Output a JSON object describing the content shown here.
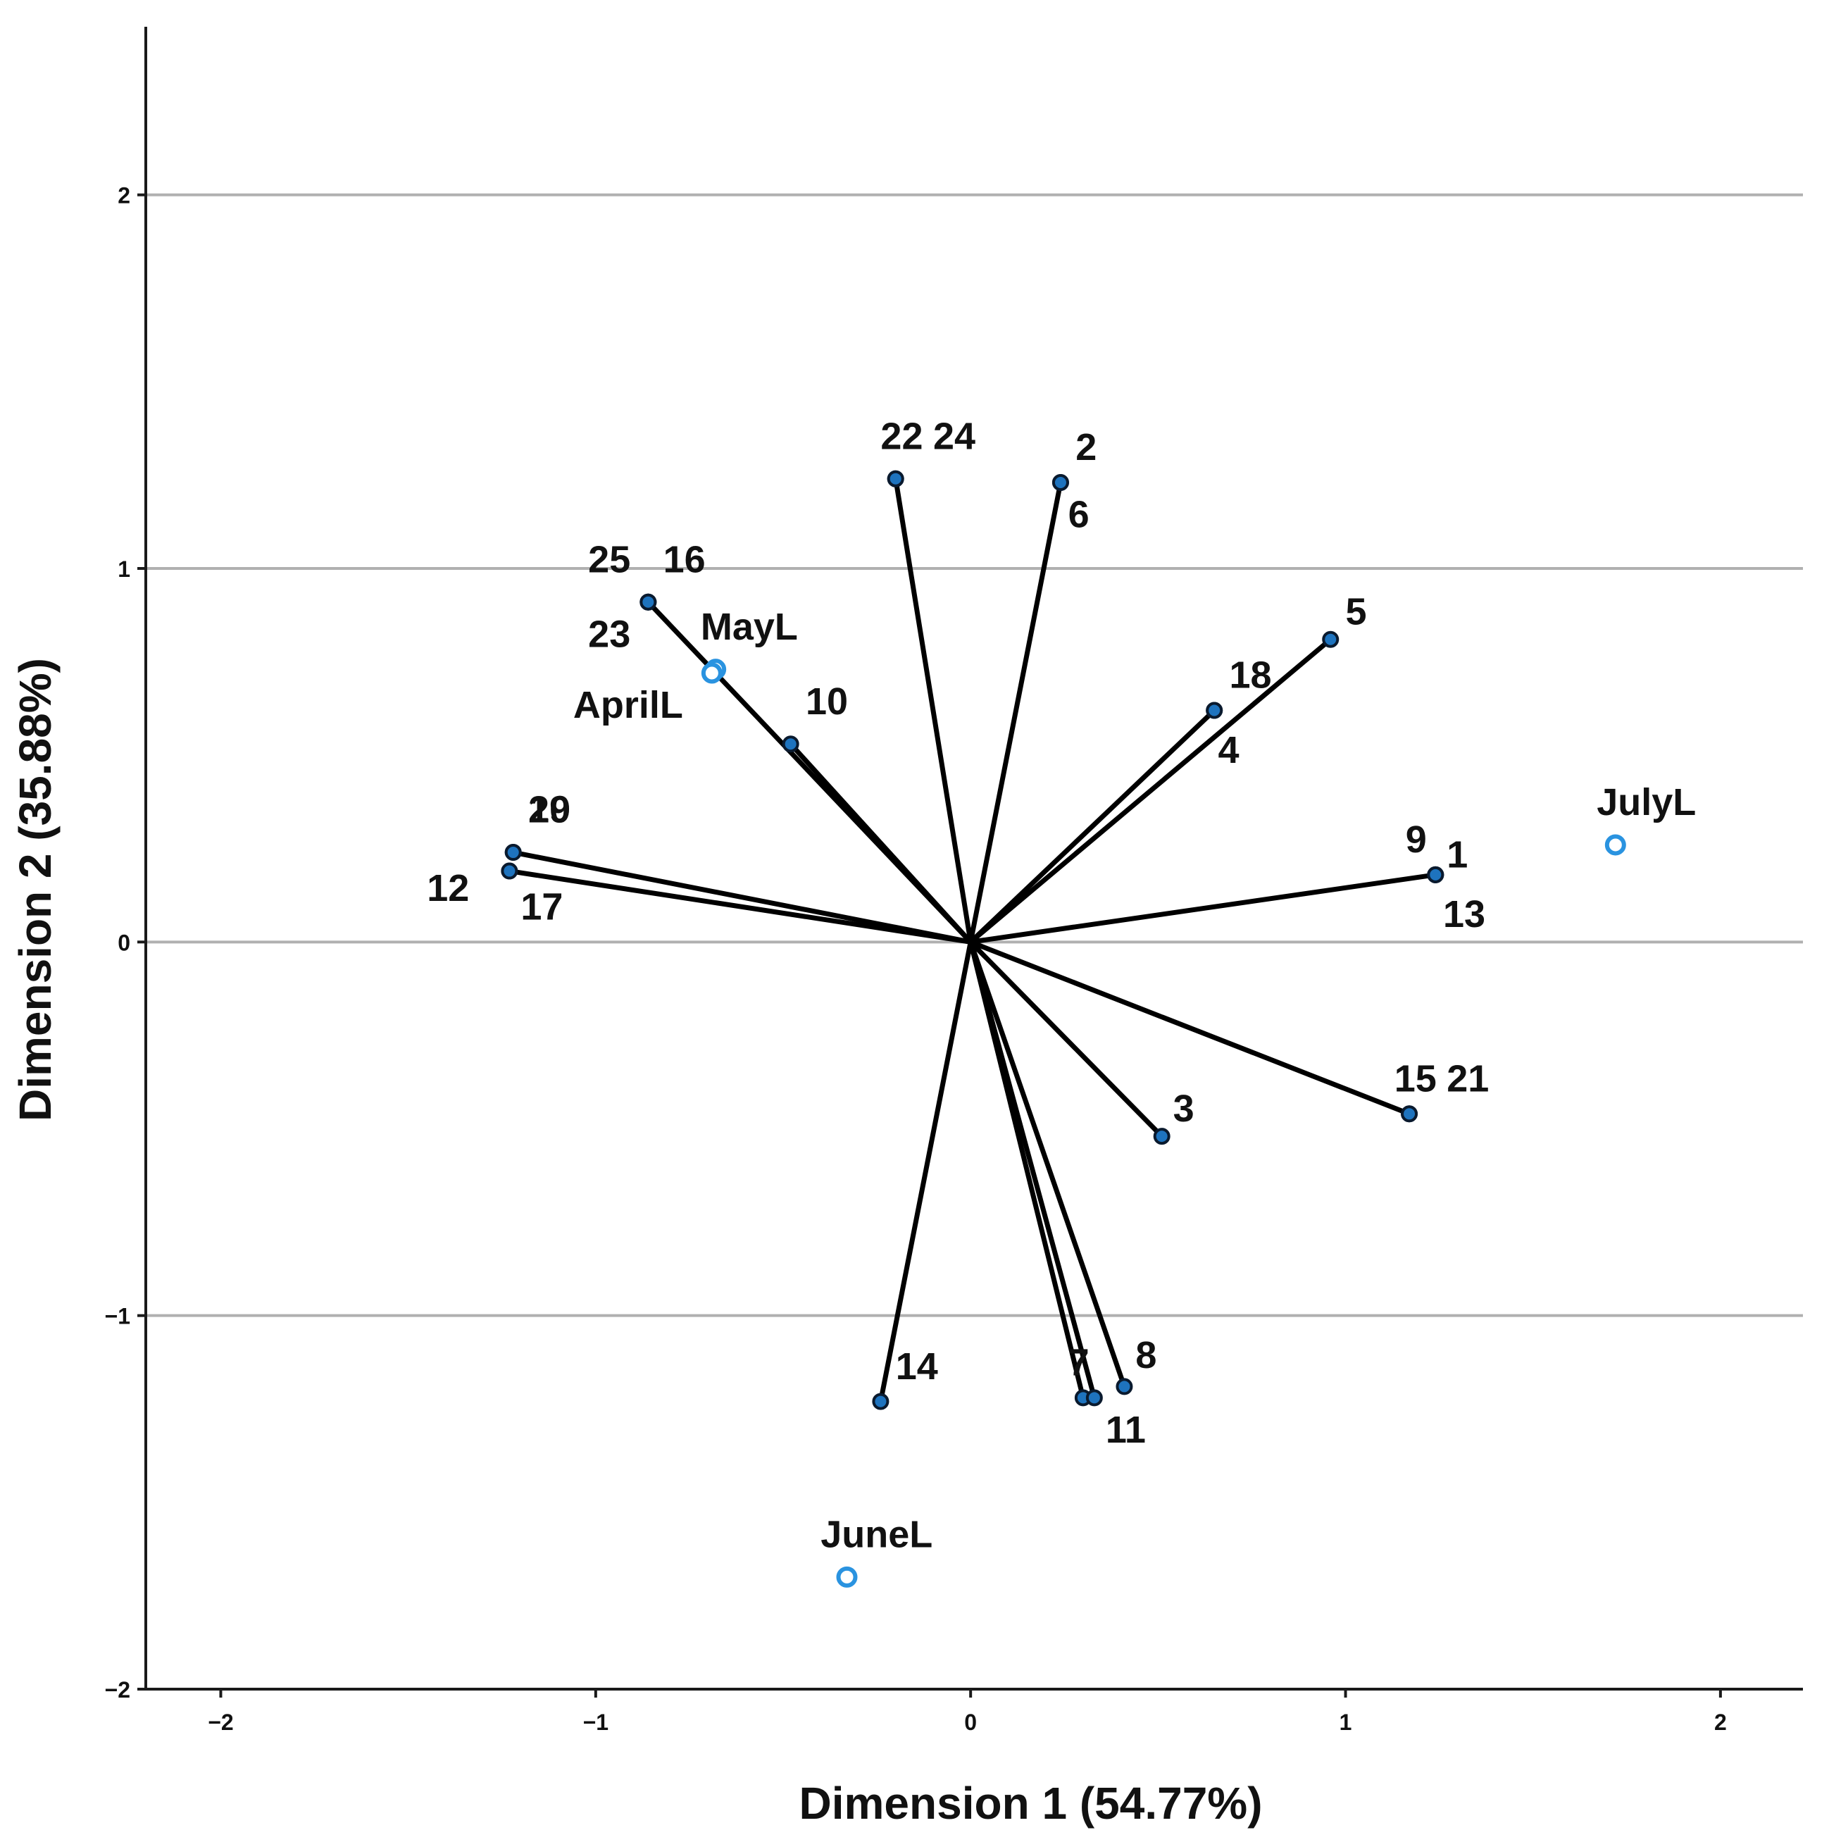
{
  "chart_data": {
    "type": "scatter",
    "subtype": "biplot",
    "title": "",
    "xlabel": "Dimension 1 (54.77%)",
    "ylabel": "Dimension 2 (35.88%)",
    "xlim": [
      -2.2,
      2.22
    ],
    "ylim": [
      -2.0,
      2.45
    ],
    "x_ticks": [
      -2,
      -1,
      0,
      1,
      2
    ],
    "x_tick_labels": [
      "−2",
      "−1",
      "0",
      "1",
      "2"
    ],
    "y_ticks": [
      -2,
      -1,
      0,
      1,
      2
    ],
    "y_tick_labels": [
      "−2",
      "−1",
      "0",
      "1",
      "2"
    ],
    "grid": "horizontal",
    "colors": {
      "axis": "#1a1a1a",
      "grid": "#b0b0b0",
      "vector": "#000000",
      "object_point_fill": "#1e73be",
      "object_point_stroke": "#0a1a2e",
      "category_point": "#2a93e0"
    },
    "object_points": [
      {
        "label": "2",
        "x": 0.24,
        "y": 1.23,
        "label_dx": 0.04,
        "label_dy": 0.06
      },
      {
        "label": "6",
        "x": 0.24,
        "y": 1.23,
        "label_dx": 0.02,
        "label_dy": -0.12
      },
      {
        "label": "22",
        "x": -0.2,
        "y": 1.24,
        "label_dx": -0.04,
        "label_dy": 0.08
      },
      {
        "label": "24",
        "x": -0.2,
        "y": 1.24,
        "label_dx": 0.1,
        "label_dy": 0.08
      },
      {
        "label": "25",
        "x": -0.86,
        "y": 0.91,
        "label_dx": -0.16,
        "label_dy": 0.08
      },
      {
        "label": "16",
        "x": -0.86,
        "y": 0.91,
        "label_dx": 0.04,
        "label_dy": 0.08
      },
      {
        "label": "23",
        "x": -0.86,
        "y": 0.91,
        "label_dx": -0.16,
        "label_dy": -0.12
      },
      {
        "label": "10",
        "x": -0.48,
        "y": 0.53,
        "label_dx": 0.04,
        "label_dy": 0.08
      },
      {
        "label": "20",
        "x": -1.22,
        "y": 0.24,
        "label_dx": 0.04,
        "label_dy": 0.08
      },
      {
        "label": "19",
        "x": -1.22,
        "y": 0.24,
        "label_dx": 0.04,
        "label_dy": 0.08
      },
      {
        "label": "12",
        "x": -1.23,
        "y": 0.19,
        "label_dx": -0.22,
        "label_dy": -0.08
      },
      {
        "label": "17",
        "x": -1.23,
        "y": 0.19,
        "label_dx": 0.03,
        "label_dy": -0.13
      },
      {
        "label": "5",
        "x": 0.96,
        "y": 0.81,
        "label_dx": 0.04,
        "label_dy": 0.04
      },
      {
        "label": "18",
        "x": 0.65,
        "y": 0.62,
        "label_dx": 0.04,
        "label_dy": 0.06
      },
      {
        "label": "4",
        "x": 0.65,
        "y": 0.62,
        "label_dx": 0.01,
        "label_dy": -0.14
      },
      {
        "label": "9",
        "x": 1.24,
        "y": 0.18,
        "label_dx": -0.08,
        "label_dy": 0.06
      },
      {
        "label": "1",
        "x": 1.24,
        "y": 0.18,
        "label_dx": 0.03,
        "label_dy": 0.02
      },
      {
        "label": "13",
        "x": 1.24,
        "y": 0.18,
        "label_dx": 0.02,
        "label_dy": -0.14
      },
      {
        "label": "15",
        "x": 1.17,
        "y": -0.46,
        "label_dx": -0.04,
        "label_dy": 0.06
      },
      {
        "label": "21",
        "x": 1.17,
        "y": -0.46,
        "label_dx": 0.1,
        "label_dy": 0.06
      },
      {
        "label": "3",
        "x": 0.51,
        "y": -0.52,
        "label_dx": 0.03,
        "label_dy": 0.04
      },
      {
        "label": "14",
        "x": -0.24,
        "y": -1.23,
        "label_dx": 0.04,
        "label_dy": 0.06
      },
      {
        "label": "7",
        "x": 0.3,
        "y": -1.22,
        "label_dx": -0.04,
        "label_dy": 0.06
      },
      {
        "label": "8",
        "x": 0.41,
        "y": -1.19,
        "label_dx": 0.03,
        "label_dy": 0.05
      },
      {
        "label": "11",
        "x": 0.33,
        "y": -1.22,
        "label_dx": 0.03,
        "label_dy": -0.12
      }
    ],
    "category_points": [
      {
        "label": "MayL",
        "x": -0.68,
        "y": 0.73,
        "label_dx": -0.04,
        "label_dy": 0.08
      },
      {
        "label": "AprilL",
        "x": -0.69,
        "y": 0.72,
        "label_dx": -0.37,
        "label_dy": -0.12
      },
      {
        "label": "JulyL",
        "x": 1.72,
        "y": 0.26,
        "label_dx": -0.05,
        "label_dy": 0.08
      },
      {
        "label": "JuneL",
        "x": -0.33,
        "y": -1.7,
        "label_dx": -0.07,
        "label_dy": 0.08
      }
    ]
  }
}
